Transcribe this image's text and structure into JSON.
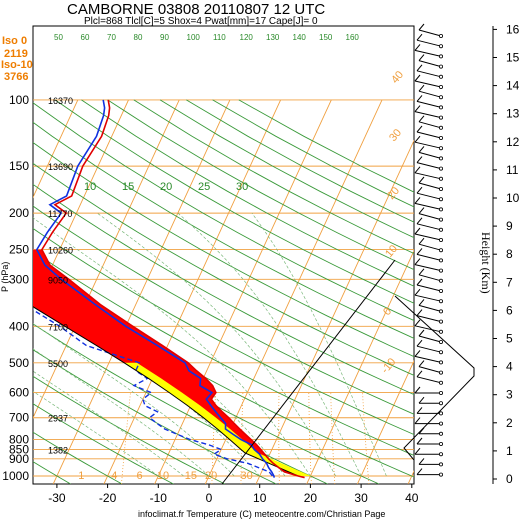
{
  "header": {
    "title": "CAMBORNE 03808 20110807 12 UTC",
    "subtitle": "Plcl=868 Tlcl[C]=5 Shox=4 Pwat[mm]=17 Cape[J]= 0",
    "credit": "infoclimat.fr Temperature (C) meteocentre.com/Christian Page",
    "p_axis_label": "P (hPa)",
    "height_axis_label": "Height (Km)"
  },
  "freezing_levels": {
    "iso0_label": "Iso 0",
    "iso0_value": "2119",
    "iso10_label": "Iso-10",
    "iso10_value": "3766"
  },
  "chart_data": {
    "type": "line",
    "chart_kind": "skew-T log-P sounding",
    "station": "CAMBORNE 03808",
    "date": "20110807 12 UTC",
    "xlabel": "Temperature (C)",
    "ylabel": "P (hPa)",
    "y2label": "Height (Km)",
    "xlim": [
      -35,
      40
    ],
    "ylim": [
      1050,
      100
    ],
    "y_log_scale": true,
    "x_ticks": [
      -30,
      -20,
      -10,
      0,
      10,
      20,
      30,
      40
    ],
    "pressure_ticks": [
      100,
      150,
      200,
      250,
      300,
      400,
      500,
      600,
      700,
      800,
      850,
      900,
      1000
    ],
    "height_ticks_km": [
      0,
      1,
      2,
      3,
      4,
      5,
      6,
      7,
      8,
      9,
      10,
      11,
      12,
      13,
      14,
      15,
      16
    ],
    "height_labels_m": [
      {
        "p": 100,
        "label": "16370"
      },
      {
        "p": 150,
        "label": "13690"
      },
      {
        "p": 200,
        "label": "11770"
      },
      {
        "p": 250,
        "label": "10260"
      },
      {
        "p": 300,
        "label": "9050"
      },
      {
        "p": 400,
        "label": "7100"
      },
      {
        "p": 500,
        "label": "5500"
      },
      {
        "p": 700,
        "label": "2937"
      },
      {
        "p": 850,
        "label": "1382"
      }
    ],
    "mixing_ratio_labels": [
      "1",
      "4",
      "6",
      "10",
      "15",
      "20",
      "30"
    ],
    "mixing_ratio_top_labels": [
      "50",
      "60",
      "70",
      "80",
      "90",
      "100",
      "110",
      "120",
      "130",
      "140",
      "150",
      "160"
    ],
    "dry_adiabat_labels": [
      "40",
      "30",
      "20",
      "10",
      "0",
      "-10"
    ],
    "series": [
      {
        "name": "Temperature",
        "color": "#e00000",
        "p": [
          1010,
          1000,
          975,
          950,
          925,
          900,
          875,
          850,
          825,
          800,
          775,
          750,
          725,
          700,
          675,
          650,
          625,
          600,
          575,
          550,
          525,
          500,
          450,
          400,
          350,
          300,
          275,
          250,
          225,
          200,
          190,
          180,
          150,
          125,
          110,
          105,
          100
        ],
        "values": [
          19,
          17.6,
          14.5,
          13.0,
          11.5,
          10.2,
          9.0,
          7.8,
          6.5,
          5.0,
          3.4,
          1.8,
          0.2,
          -1.4,
          -3.2,
          -5.0,
          -6.5,
          -6.2,
          -7.5,
          -9.5,
          -12.0,
          -14.4,
          -21.0,
          -28.6,
          -37.0,
          -45.5,
          -50.5,
          -53.5,
          -53.0,
          -52.0,
          -55.0,
          -52.5,
          -53.0,
          -52.0,
          -52.5,
          -53.0,
          -54.0
        ]
      },
      {
        "name": "Dew point",
        "color": "#1030e0",
        "p": [
          1010,
          1000,
          975,
          950,
          925,
          900,
          875,
          850,
          825,
          800,
          775,
          750,
          725,
          700,
          675,
          650,
          625,
          600,
          575,
          550,
          525,
          500,
          450,
          400,
          350,
          300,
          275,
          250,
          225,
          200,
          190,
          180,
          150,
          125,
          110,
          105,
          100
        ],
        "values": [
          13.0,
          12.8,
          12.0,
          11.0,
          10.2,
          9.0,
          8.0,
          6.5,
          5.5,
          3.0,
          1.0,
          -1.0,
          -1.5,
          -3.0,
          -4.5,
          -6.0,
          -7.5,
          -7.0,
          -10.0,
          -10.5,
          -13.5,
          -15.0,
          -22.0,
          -30.0,
          -38.0,
          -47.0,
          -51.5,
          -54.5,
          -54.0,
          -53.0,
          -56.0,
          -53.5,
          -54.0,
          -53.0,
          -53.5,
          -54.0,
          -55.0
        ]
      },
      {
        "name": "Dew point (upper, dashed)",
        "color": "#1030e0",
        "p": [
          1000,
          975,
          950,
          925,
          900,
          875,
          850,
          825,
          800,
          775,
          750,
          725,
          700,
          675,
          650,
          625,
          600,
          575,
          550,
          525,
          500,
          450,
          400,
          350,
          325,
          300,
          275,
          250,
          225,
          200,
          175,
          150,
          125,
          100
        ],
        "values": [
          12.5,
          11.5,
          9.0,
          6.5,
          2.0,
          -1.0,
          0.0,
          -3.0,
          -7.0,
          -10.0,
          -13.0,
          -15.0,
          -17.0,
          -16.0,
          -19.0,
          -20.0,
          -19.0,
          -23.0,
          -21.0,
          -24.0,
          -24.0,
          -36.0,
          -43.0,
          -52.0,
          -54.0,
          -63.0,
          -75.0,
          -83.0,
          -95.0,
          -110.0,
          -125.0,
          -140.0,
          -165.0,
          -200.0
        ]
      },
      {
        "name": "Parcel",
        "color": "#000000",
        "p": [
          1000,
          950,
          900,
          868,
          850,
          800,
          750,
          700,
          650,
          600,
          550,
          500,
          450,
          400,
          350,
          300,
          250
        ],
        "values": [
          17.6,
          13.0,
          8.2,
          5.0,
          3.9,
          0.8,
          -2.6,
          -6.4,
          -10.6,
          -15.4,
          -20.8,
          -27.0,
          -34.0,
          -42.0,
          -51.0,
          -61.0,
          -72.0
        ]
      }
    ],
    "wind_barbs_note": "Wind barbs plotted on right margin against pressure"
  }
}
